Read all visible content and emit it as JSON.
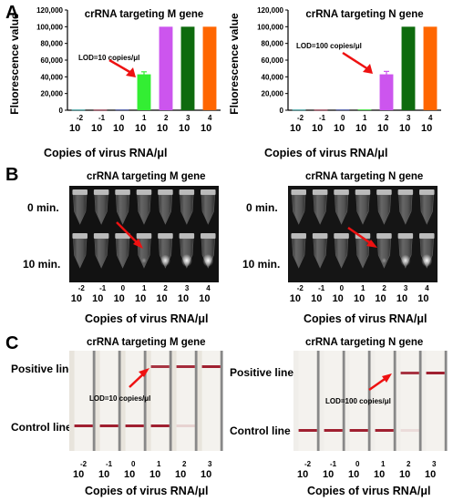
{
  "panels": {
    "a": "A",
    "b": "B",
    "c": "C"
  },
  "common": {
    "x_axis_label": "Copies of virus RNA/μl",
    "dilution_base": "10",
    "dilution_exponents": [
      "-2",
      "-1",
      "0",
      "1",
      "2",
      "3",
      "4"
    ],
    "strip_exponents": [
      "-2",
      "-1",
      "0",
      "1",
      "2",
      "3"
    ]
  },
  "panel_b": {
    "left_title": "crRNA targeting M gene",
    "right_title": "crRNA targeting N gene",
    "row_0": "0 min.",
    "row_10": "10 min."
  },
  "panel_c": {
    "left_title": "crRNA targeting M gene",
    "right_title": "crRNA targeting N gene",
    "left_lod": "LOD=10 copies/μl",
    "right_lod": "LOD=100 copies/μl",
    "positive_line": "Positive line",
    "control_line": "Control line"
  },
  "colors": {
    "green": "#33ee33",
    "magenta": "#cc55ee",
    "darkgreen": "#0e6b0e",
    "orange": "#ff6600",
    "teal": "#22aaaa",
    "maroon": "#aa2244",
    "navy": "#3344aa",
    "arrow": "#ee1111"
  },
  "chart_data": [
    {
      "type": "bar",
      "title": "crRNA targeting M gene",
      "xlabel": "Copies of virus RNA/μl",
      "ylabel": "Fluorescence value",
      "categories": [
        "10^-2",
        "10^-1",
        "10^0",
        "10^1",
        "10^2",
        "10^3",
        "10^4"
      ],
      "values": [
        600,
        500,
        700,
        43000,
        100000,
        100000,
        100000
      ],
      "errors": [
        0,
        0,
        0,
        3000,
        0,
        0,
        0
      ],
      "colors": [
        "#22aaaa",
        "#aa2244",
        "#3344aa",
        "#33ee33",
        "#cc55ee",
        "#0e6b0e",
        "#ff6600"
      ],
      "ylim": [
        0,
        120000
      ],
      "yticks": [
        "0",
        "20,000",
        "40,000",
        "60,000",
        "80,000",
        "100,000",
        "120,000"
      ],
      "annotation": "LOD=10 copies/μl"
    },
    {
      "type": "bar",
      "title": "crRNA targeting N gene",
      "xlabel": "Copies of virus RNA/μl",
      "ylabel": "Fluorescence value",
      "categories": [
        "10^-2",
        "10^-1",
        "10^0",
        "10^1",
        "10^2",
        "10^3",
        "10^4"
      ],
      "values": [
        600,
        500,
        700,
        800,
        43000,
        100000,
        100000
      ],
      "errors": [
        0,
        0,
        0,
        0,
        3500,
        0,
        0
      ],
      "colors": [
        "#22aaaa",
        "#aa2244",
        "#3344aa",
        "#33ee33",
        "#cc55ee",
        "#0e6b0e",
        "#ff6600"
      ],
      "ylim": [
        0,
        120000
      ],
      "yticks": [
        "0",
        "20,000",
        "40,000",
        "60,000",
        "80,000",
        "100,000",
        "120,000"
      ],
      "annotation": "LOD=100 copies/μl"
    }
  ]
}
